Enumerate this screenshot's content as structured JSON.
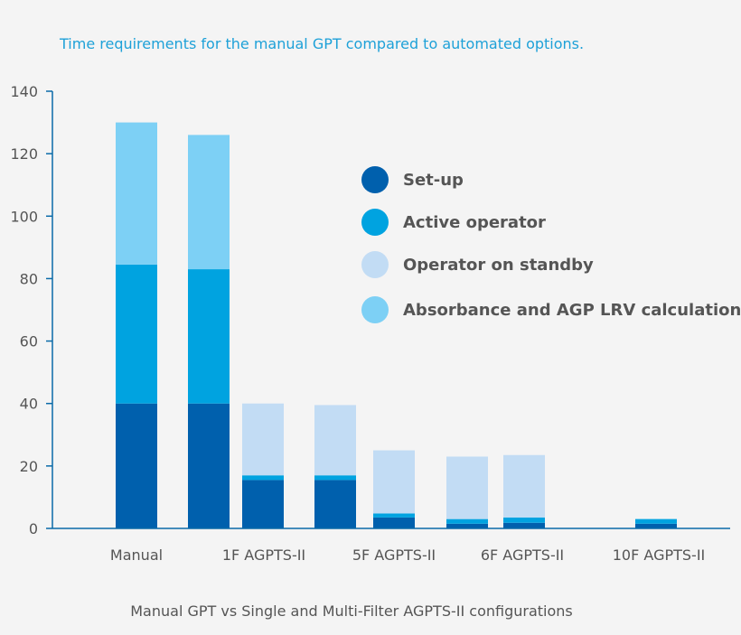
{
  "chart_data": {
    "type": "bar",
    "stacked": true,
    "title": "Time requirements for the manual GPT compared to automated options.",
    "xlabel": "Manual GPT vs Single and Multi-Filter AGPTS-II configurations",
    "ylabel": "",
    "ylim": [
      0,
      140
    ],
    "yticks": [
      0,
      20,
      40,
      60,
      80,
      100,
      120,
      140
    ],
    "categories": [
      "Manual",
      "1F AGPTS-II",
      "5F AGPTS-II",
      "6F AGPTS-II",
      "10F AGPTS-II"
    ],
    "legend_position": "upper-right",
    "colors": {
      "setup": "#0060ad",
      "active": "#00a3e0",
      "standby": "#c2dcf4",
      "absorbance": "#7dd0f5",
      "axis": "#0a6aa8",
      "title": "#1ea1d8",
      "text": "#555555"
    },
    "series": [
      {
        "key": "setup",
        "name": "Set-up"
      },
      {
        "key": "active",
        "name": "Active operator"
      },
      {
        "key": "standby",
        "name": "Operator on standby"
      },
      {
        "key": "absorbance",
        "name": "Absorbance and AGP LRV calculation"
      }
    ],
    "bars": [
      {
        "category": "Manual",
        "values": {
          "setup": 40,
          "active": 44.5,
          "standby": 0,
          "absorbance": 45.5
        }
      },
      {
        "category": "Manual",
        "values": {
          "setup": 40,
          "active": 43,
          "standby": 0,
          "absorbance": 43
        }
      },
      {
        "category": "1F AGPTS-II",
        "values": {
          "setup": 15.5,
          "active": 1.5,
          "standby": 23,
          "absorbance": 0
        }
      },
      {
        "category": "1F AGPTS-II",
        "values": {
          "setup": 15.5,
          "active": 1.5,
          "standby": 22.5,
          "absorbance": 0
        }
      },
      {
        "category": "5F AGPTS-II",
        "values": {
          "setup": 3.5,
          "active": 1.3,
          "standby": 20.2,
          "absorbance": 0
        }
      },
      {
        "category": "6F AGPTS-II",
        "values": {
          "setup": 1.5,
          "active": 1.5,
          "standby": 20,
          "absorbance": 0
        }
      },
      {
        "category": "6F AGPTS-II",
        "values": {
          "setup": 1.8,
          "active": 1.7,
          "standby": 20,
          "absorbance": 0
        }
      },
      {
        "category": "10F AGPTS-II",
        "values": {
          "setup": 1.5,
          "active": 1.5,
          "standby": 0,
          "absorbance": 0
        }
      }
    ]
  }
}
